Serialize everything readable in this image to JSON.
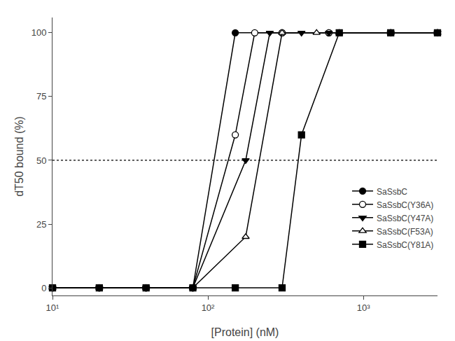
{
  "chart_data": {
    "type": "line",
    "xlabel": "[Protein] (nM)",
    "ylabel": "dT50 bound (%)",
    "log": "x",
    "xlim": [
      10,
      3000
    ],
    "xticks": [
      {
        "value": 10,
        "label": "10¹"
      },
      {
        "value": 100,
        "label": "10²"
      },
      {
        "value": 1000,
        "label": "10³"
      }
    ],
    "ylim": [
      -3,
      106
    ],
    "yticks": [
      0,
      25,
      50,
      75,
      100
    ],
    "grid": false,
    "legend": "right",
    "reference_line": {
      "y": 50,
      "line_style": "dotted",
      "color": "black"
    },
    "series": [
      {
        "name": "SaSsbC",
        "color": "black",
        "marker": "circle",
        "x": [
          10,
          20,
          40,
          80,
          150,
          300,
          600,
          1500,
          3000
        ],
        "values": [
          0,
          0,
          0,
          0,
          100,
          100,
          100,
          100,
          100
        ]
      },
      {
        "name": "SaSsbC(Y36A)",
        "color": "black",
        "marker": "circle-open",
        "x": [
          10,
          20,
          40,
          80,
          150,
          200,
          300,
          600,
          1500,
          3000
        ],
        "values": [
          0,
          0,
          0,
          0,
          60,
          100,
          100,
          100,
          100,
          100
        ]
      },
      {
        "name": "SaSsbC(Y47A)",
        "color": "black",
        "marker": "triangle-down",
        "x": [
          10,
          20,
          40,
          80,
          175,
          250,
          400,
          600,
          1500,
          3000
        ],
        "values": [
          0,
          0,
          0,
          0,
          50,
          100,
          100,
          100,
          100,
          100
        ]
      },
      {
        "name": "SaSsbC(F53A)",
        "color": "black",
        "marker": "triangle-up-open",
        "x": [
          10,
          20,
          40,
          80,
          175,
          300,
          500,
          700,
          1500,
          3000
        ],
        "values": [
          0,
          0,
          0,
          0,
          20,
          100,
          100,
          100,
          100,
          100
        ]
      },
      {
        "name": "SaSsbC(Y81A)",
        "color": "black",
        "marker": "square",
        "x": [
          10,
          20,
          40,
          80,
          150,
          300,
          400,
          700,
          1500,
          3000
        ],
        "values": [
          0,
          0,
          0,
          0,
          0,
          0,
          60,
          100,
          100,
          100
        ]
      }
    ]
  }
}
